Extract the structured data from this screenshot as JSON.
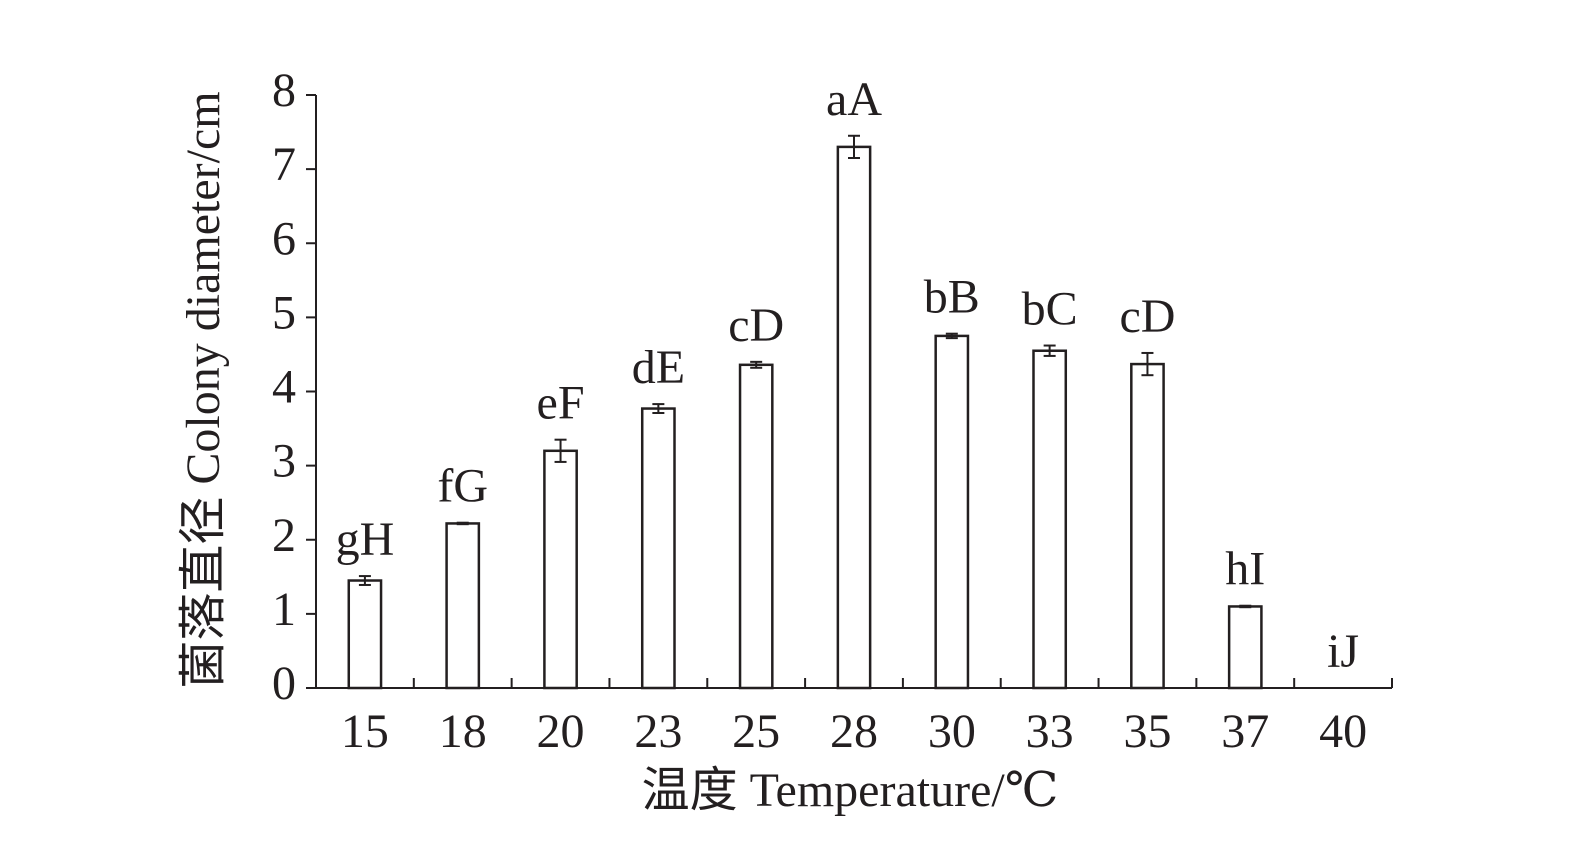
{
  "chart_data": {
    "type": "bar",
    "x_label": "温度 Temperature/℃",
    "y_label": "菌落直径 Colony diameter/cm",
    "categories": [
      "15",
      "18",
      "20",
      "23",
      "25",
      "28",
      "30",
      "33",
      "35",
      "37",
      "40"
    ],
    "values": [
      1.45,
      2.22,
      3.2,
      3.77,
      4.36,
      7.3,
      4.75,
      4.55,
      4.37,
      1.1,
      0
    ],
    "errors": [
      0.06,
      0.01,
      0.15,
      0.06,
      0.04,
      0.15,
      0.03,
      0.07,
      0.15,
      0.01,
      0
    ],
    "annotations": [
      "gH",
      "fG",
      "eF",
      "dE",
      "cD",
      "aA",
      "bB",
      "bC",
      "cD",
      "hI",
      "iJ"
    ],
    "color": "#ffffff",
    "edge_color": "#231f20",
    "ylim": [
      0,
      8
    ],
    "yticks": [
      0,
      1,
      2,
      3,
      4,
      5,
      6,
      7,
      8
    ],
    "grid": false
  }
}
